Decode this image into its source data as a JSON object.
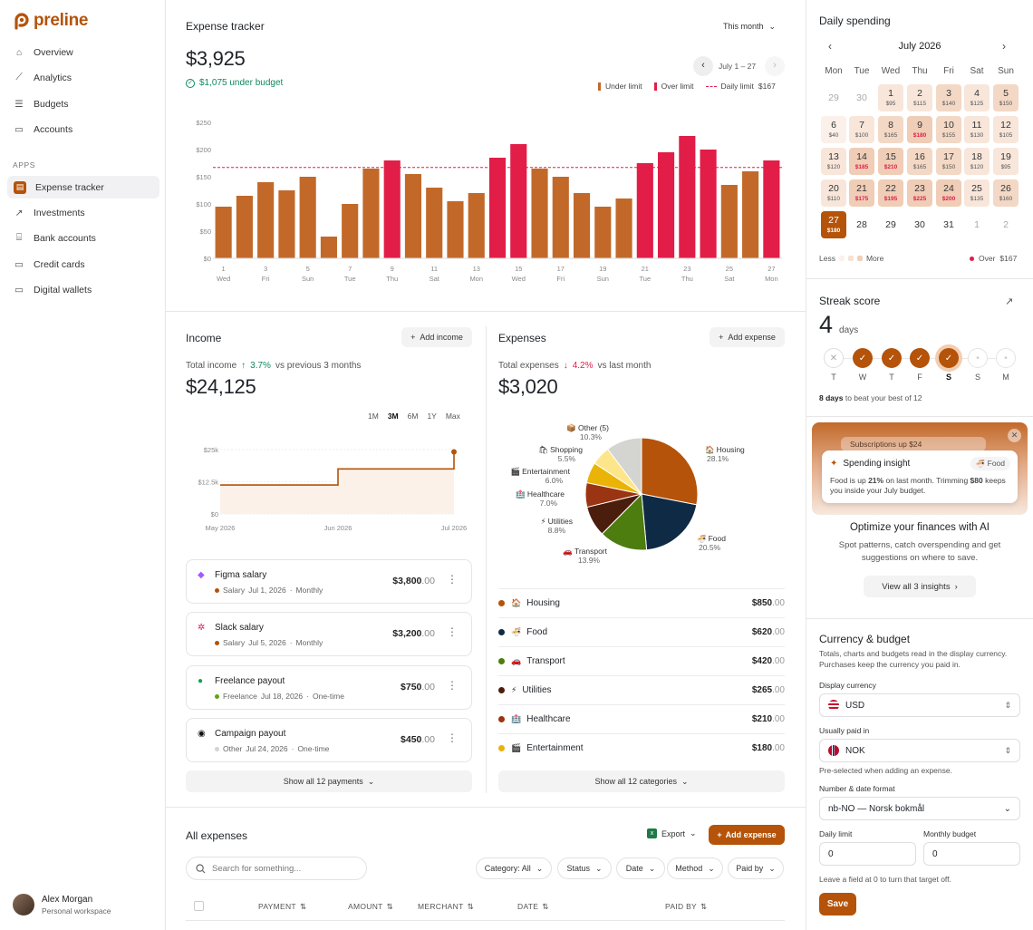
{
  "brand": {
    "name": "preline",
    "color": "#b45309"
  },
  "nav": {
    "items": [
      {
        "label": "Overview",
        "icon": "home-icon"
      },
      {
        "label": "Analytics",
        "icon": "chart-line-icon"
      },
      {
        "label": "Budgets",
        "icon": "sliders-icon"
      },
      {
        "label": "Accounts",
        "icon": "wallet-icon"
      }
    ],
    "apps_label": "APPS",
    "apps": [
      {
        "label": "Expense tracker",
        "icon": "receipt-icon",
        "active": true
      },
      {
        "label": "Investments",
        "icon": "trend-up-icon"
      },
      {
        "label": "Bank accounts",
        "icon": "bank-icon"
      },
      {
        "label": "Credit cards",
        "icon": "credit-card-icon"
      },
      {
        "label": "Digital wallets",
        "icon": "wallet-icon"
      }
    ]
  },
  "user": {
    "name": "Alex Morgan",
    "workspace": "Personal workspace"
  },
  "tracker": {
    "title": "Expense tracker",
    "period": "This month",
    "total": "$3,925",
    "under_budget": "$1,075 under budget",
    "range": "July 1 – 27",
    "legend_under": "Under limit",
    "legend_over": "Over limit",
    "legend_daily": "Daily limit",
    "legend_daily_value": "$167"
  },
  "chart_data": {
    "type": "bar",
    "y_ticks": [
      "$250",
      "$200",
      "$150",
      "$100",
      "$50",
      "$0"
    ],
    "ylim": [
      0,
      250
    ],
    "daily_limit": 167,
    "days": [
      1,
      2,
      3,
      4,
      5,
      6,
      7,
      8,
      9,
      10,
      11,
      12,
      13,
      14,
      15,
      16,
      17,
      18,
      19,
      20,
      21,
      22,
      23,
      24,
      25,
      26,
      27
    ],
    "values": [
      95,
      115,
      140,
      125,
      150,
      40,
      100,
      165,
      180,
      155,
      130,
      105,
      120,
      185,
      210,
      165,
      150,
      120,
      95,
      110,
      175,
      195,
      225,
      200,
      135,
      160,
      180
    ],
    "x_labels": [
      {
        "day": "1",
        "wd": "Wed"
      },
      {
        "day": "3",
        "wd": "Fri"
      },
      {
        "day": "5",
        "wd": "Sun"
      },
      {
        "day": "7",
        "wd": "Tue"
      },
      {
        "day": "9",
        "wd": "Thu"
      },
      {
        "day": "11",
        "wd": "Sat"
      },
      {
        "day": "13",
        "wd": "Mon"
      },
      {
        "day": "15",
        "wd": "Wed"
      },
      {
        "day": "17",
        "wd": "Fri"
      },
      {
        "day": "19",
        "wd": "Sun"
      },
      {
        "day": "21",
        "wd": "Tue"
      },
      {
        "day": "23",
        "wd": "Thu"
      },
      {
        "day": "25",
        "wd": "Sat"
      },
      {
        "day": "27",
        "wd": "Mon"
      }
    ],
    "colors": {
      "under": "#c2692a",
      "over": "#e11d48"
    }
  },
  "income": {
    "title": "Income",
    "add_label": "Add income",
    "total_label": "Total income",
    "change": "3.7%",
    "change_suffix": "vs previous 3 months",
    "total": "$24,125",
    "ranges": [
      "1M",
      "3M",
      "6M",
      "1Y",
      "Max"
    ],
    "y_ticks": [
      "$25k",
      "$12.5k",
      "$0"
    ],
    "x_ticks": [
      "May 2026",
      "Jun 2026",
      "Jul 2026"
    ],
    "series": [
      {
        "period": "May 2026",
        "value": 11250
      },
      {
        "period": "Jun 2026",
        "value": 11250
      },
      {
        "period": "Jun 2026",
        "value": 17500
      },
      {
        "period": "Jul 2026",
        "value": 17500
      },
      {
        "period": "Jul 2026",
        "value": 24125
      }
    ],
    "payments": [
      {
        "name": "Figma salary",
        "category": "Salary",
        "date": "Jul 1, 2026",
        "freq": "Monthly",
        "amount": "$3,800",
        "cents": ".00",
        "dot": "#b45309",
        "icon": "figma-icon"
      },
      {
        "name": "Slack salary",
        "category": "Salary",
        "date": "Jul 5, 2026",
        "freq": "Monthly",
        "amount": "$3,200",
        "cents": ".00",
        "dot": "#b45309",
        "icon": "slack-icon"
      },
      {
        "name": "Freelance payout",
        "category": "Freelance",
        "date": "Jul 18, 2026",
        "freq": "One-time",
        "amount": "$750",
        "cents": ".00",
        "dot": "#65a30d",
        "icon": "money-icon"
      },
      {
        "name": "Campaign payout",
        "category": "Other",
        "date": "Jul 24, 2026",
        "freq": "One-time",
        "amount": "$450",
        "cents": ".00",
        "dot": "#d4d4d8",
        "icon": "campaign-icon"
      }
    ],
    "show_all": "Show all 12 payments"
  },
  "expenses": {
    "title": "Expenses",
    "add_label": "Add expense",
    "total_label": "Total expenses",
    "change": "4.2%",
    "change_suffix": "vs last month",
    "total": "$3,020",
    "pie": [
      {
        "name": "Housing",
        "pct": "28.1%",
        "value": 28.1,
        "color": "#b45309",
        "icon": "🏠"
      },
      {
        "name": "Food",
        "pct": "20.5%",
        "value": 20.5,
        "color": "#0f2a44",
        "icon": "🍜"
      },
      {
        "name": "Transport",
        "pct": "13.9%",
        "value": 13.9,
        "color": "#4d7c0f",
        "icon": "🚗"
      },
      {
        "name": "Utilities",
        "pct": "8.8%",
        "value": 8.8,
        "color": "#4a1d0c",
        "icon": "⚡"
      },
      {
        "name": "Healthcare",
        "pct": "7.0%",
        "value": 7.0,
        "color": "#9a3412",
        "icon": "🏥"
      },
      {
        "name": "Entertainment",
        "pct": "6.0%",
        "value": 6.0,
        "color": "#eab308",
        "icon": "🎬"
      },
      {
        "name": "Shopping",
        "pct": "5.5%",
        "value": 5.5,
        "color": "#fde68a",
        "icon": "🛍"
      },
      {
        "name": "Other (5)",
        "pct": "10.3%",
        "value": 10.3,
        "color": "#d4d4d0",
        "icon": "📦"
      }
    ],
    "rows": [
      {
        "name": "Housing",
        "icon": "🏠",
        "amount": "$850",
        "cents": ".00",
        "dot": "#b45309"
      },
      {
        "name": "Food",
        "icon": "🍜",
        "amount": "$620",
        "cents": ".00",
        "dot": "#0f2a44"
      },
      {
        "name": "Transport",
        "icon": "🚗",
        "amount": "$420",
        "cents": ".00",
        "dot": "#4d7c0f"
      },
      {
        "name": "Utilities",
        "icon": "⚡",
        "amount": "$265",
        "cents": ".00",
        "dot": "#4a1d0c"
      },
      {
        "name": "Healthcare",
        "icon": "🏥",
        "amount": "$210",
        "cents": ".00",
        "dot": "#9a3412"
      },
      {
        "name": "Entertainment",
        "icon": "🎬",
        "amount": "$180",
        "cents": ".00",
        "dot": "#eab308"
      }
    ],
    "show_all": "Show all 12 categories"
  },
  "all_expenses": {
    "title": "All expenses",
    "export": "Export",
    "add": "Add expense",
    "search_placeholder": "Search for something...",
    "filters": [
      "Category: All",
      "Status",
      "Date",
      "Method",
      "Paid by"
    ],
    "columns": [
      "PAYMENT",
      "AMOUNT",
      "MERCHANT",
      "DATE",
      "PAID BY"
    ]
  },
  "calendar": {
    "title": "Daily spending",
    "month": "July 2026",
    "weekdays": [
      "Mon",
      "Tue",
      "Wed",
      "Thu",
      "Fri",
      "Sat",
      "Sun"
    ],
    "weeks": [
      [
        {
          "d": "29",
          "muted": true
        },
        {
          "d": "30",
          "muted": true
        },
        {
          "d": "1",
          "v": "$95",
          "lvl": 1
        },
        {
          "d": "2",
          "v": "$115",
          "lvl": 1
        },
        {
          "d": "3",
          "v": "$140",
          "lvl": 2
        },
        {
          "d": "4",
          "v": "$125",
          "lvl": 1
        },
        {
          "d": "5",
          "v": "$150",
          "lvl": 2
        }
      ],
      [
        {
          "d": "6",
          "v": "$40",
          "lvl": 0
        },
        {
          "d": "7",
          "v": "$100",
          "lvl": 1
        },
        {
          "d": "8",
          "v": "$165",
          "lvl": 2
        },
        {
          "d": "9",
          "v": "$180",
          "lvl": 3,
          "over": true
        },
        {
          "d": "10",
          "v": "$155",
          "lvl": 2
        },
        {
          "d": "11",
          "v": "$130",
          "lvl": 1
        },
        {
          "d": "12",
          "v": "$105",
          "lvl": 1
        }
      ],
      [
        {
          "d": "13",
          "v": "$120",
          "lvl": 1
        },
        {
          "d": "14",
          "v": "$185",
          "lvl": 3,
          "over": true
        },
        {
          "d": "15",
          "v": "$210",
          "lvl": 3,
          "over": true
        },
        {
          "d": "16",
          "v": "$165",
          "lvl": 2
        },
        {
          "d": "17",
          "v": "$150",
          "lvl": 2
        },
        {
          "d": "18",
          "v": "$120",
          "lvl": 1
        },
        {
          "d": "19",
          "v": "$95",
          "lvl": 1
        }
      ],
      [
        {
          "d": "20",
          "v": "$110",
          "lvl": 1
        },
        {
          "d": "21",
          "v": "$175",
          "lvl": 3,
          "over": true
        },
        {
          "d": "22",
          "v": "$195",
          "lvl": 3,
          "over": true
        },
        {
          "d": "23",
          "v": "$225",
          "lvl": 3,
          "over": true
        },
        {
          "d": "24",
          "v": "$200",
          "lvl": 3,
          "over": true
        },
        {
          "d": "25",
          "v": "$135",
          "lvl": 1
        },
        {
          "d": "26",
          "v": "$160",
          "lvl": 2
        }
      ],
      [
        {
          "d": "27",
          "v": "$180",
          "today": true
        },
        {
          "d": "28"
        },
        {
          "d": "29"
        },
        {
          "d": "30"
        },
        {
          "d": "31"
        },
        {
          "d": "1",
          "muted": true
        },
        {
          "d": "2",
          "muted": true
        }
      ]
    ],
    "less": "Less",
    "more": "More",
    "over_label": "Over",
    "over_value": "$167"
  },
  "streak": {
    "title": "Streak score",
    "value": "4",
    "unit": "days",
    "days": [
      {
        "l": "T",
        "state": "missed"
      },
      {
        "l": "W",
        "state": "done"
      },
      {
        "l": "T",
        "state": "done"
      },
      {
        "l": "F",
        "state": "done"
      },
      {
        "l": "S",
        "state": "today"
      },
      {
        "l": "S",
        "state": "future"
      },
      {
        "l": "M",
        "state": "future"
      }
    ],
    "note_bold": "8 days",
    "note": "to beat your best of 12"
  },
  "insight": {
    "pill": "Subscriptions up $24",
    "card_title": "Spending insight",
    "tag": "Food",
    "body_1": "Food is up",
    "body_pct": "21%",
    "body_2": "on last month. Trimming",
    "body_amt": "$80",
    "body_3": "keeps you inside your July budget.",
    "heading": "Optimize your finances with AI",
    "sub": "Spot patterns, catch overspending and get suggestions on where to save.",
    "cta": "View all 3 insights"
  },
  "currency": {
    "title": "Currency & budget",
    "desc": "Totals, charts and budgets read in the display currency. Purchases keep the currency you paid in.",
    "display_label": "Display currency",
    "display_value": "USD",
    "paid_label": "Usually paid in",
    "paid_value": "NOK",
    "paid_hint": "Pre-selected when adding an expense.",
    "format_label": "Number & date format",
    "format_value": "nb-NO — Norsk bokmål",
    "daily_label": "Daily limit",
    "daily_value": "0",
    "monthly_label": "Monthly budget",
    "monthly_value": "0",
    "hint": "Leave a field at 0 to turn that target off.",
    "save": "Save"
  }
}
